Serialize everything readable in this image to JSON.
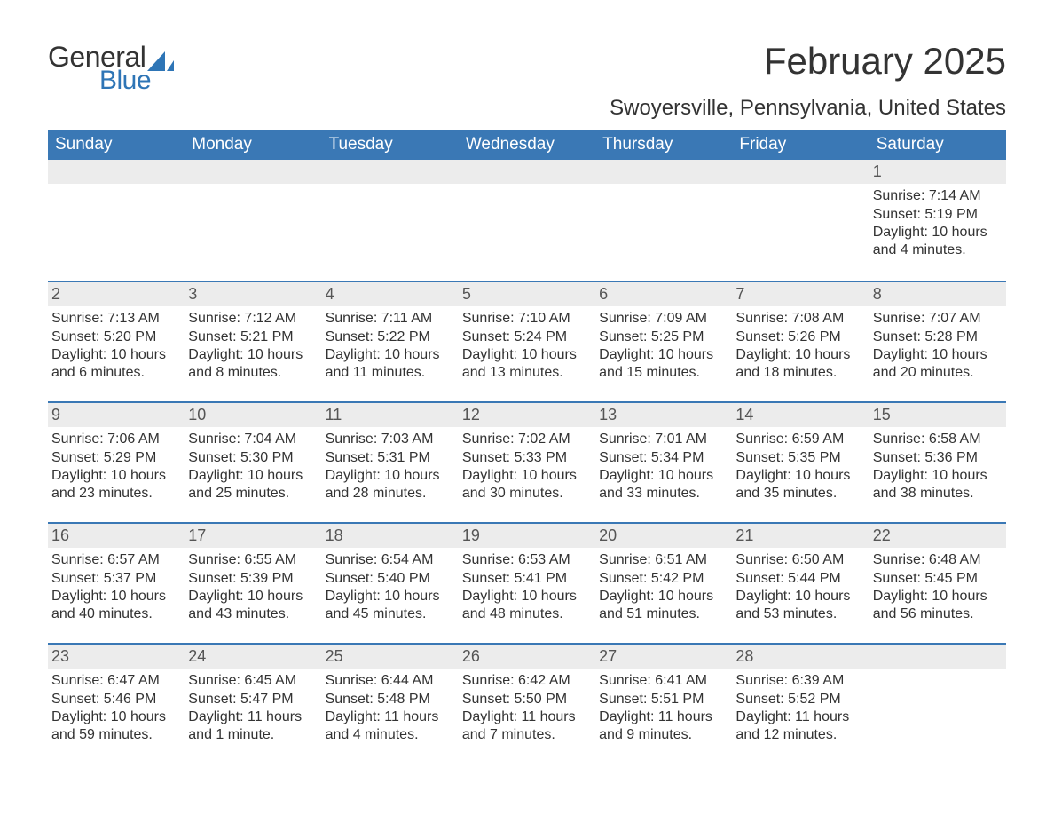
{
  "brand": {
    "word1": "General",
    "word2": "Blue",
    "text_color": "#333333",
    "accent_color": "#2e75b6"
  },
  "title": "February 2025",
  "location": "Swoyersville, Pennsylvania, United States",
  "colors": {
    "header_bg": "#3a78b5",
    "header_text": "#ffffff",
    "row_border": "#3a78b5",
    "daynum_bg": "#ececec",
    "body_text": "#333333",
    "page_bg": "#ffffff"
  },
  "typography": {
    "title_fontsize": 42,
    "location_fontsize": 24,
    "dow_fontsize": 19,
    "daynum_fontsize": 18,
    "body_fontsize": 16
  },
  "days_of_week": [
    "Sunday",
    "Monday",
    "Tuesday",
    "Wednesday",
    "Thursday",
    "Friday",
    "Saturday"
  ],
  "labels": {
    "sunrise": "Sunrise: ",
    "sunset": "Sunset: ",
    "daylight": "Daylight: "
  },
  "weeks": [
    [
      {
        "n": "",
        "sunrise": "",
        "sunset": "",
        "daylight": ""
      },
      {
        "n": "",
        "sunrise": "",
        "sunset": "",
        "daylight": ""
      },
      {
        "n": "",
        "sunrise": "",
        "sunset": "",
        "daylight": ""
      },
      {
        "n": "",
        "sunrise": "",
        "sunset": "",
        "daylight": ""
      },
      {
        "n": "",
        "sunrise": "",
        "sunset": "",
        "daylight": ""
      },
      {
        "n": "",
        "sunrise": "",
        "sunset": "",
        "daylight": ""
      },
      {
        "n": "1",
        "sunrise": "7:14 AM",
        "sunset": "5:19 PM",
        "daylight": "10 hours and 4 minutes."
      }
    ],
    [
      {
        "n": "2",
        "sunrise": "7:13 AM",
        "sunset": "5:20 PM",
        "daylight": "10 hours and 6 minutes."
      },
      {
        "n": "3",
        "sunrise": "7:12 AM",
        "sunset": "5:21 PM",
        "daylight": "10 hours and 8 minutes."
      },
      {
        "n": "4",
        "sunrise": "7:11 AM",
        "sunset": "5:22 PM",
        "daylight": "10 hours and 11 minutes."
      },
      {
        "n": "5",
        "sunrise": "7:10 AM",
        "sunset": "5:24 PM",
        "daylight": "10 hours and 13 minutes."
      },
      {
        "n": "6",
        "sunrise": "7:09 AM",
        "sunset": "5:25 PM",
        "daylight": "10 hours and 15 minutes."
      },
      {
        "n": "7",
        "sunrise": "7:08 AM",
        "sunset": "5:26 PM",
        "daylight": "10 hours and 18 minutes."
      },
      {
        "n": "8",
        "sunrise": "7:07 AM",
        "sunset": "5:28 PM",
        "daylight": "10 hours and 20 minutes."
      }
    ],
    [
      {
        "n": "9",
        "sunrise": "7:06 AM",
        "sunset": "5:29 PM",
        "daylight": "10 hours and 23 minutes."
      },
      {
        "n": "10",
        "sunrise": "7:04 AM",
        "sunset": "5:30 PM",
        "daylight": "10 hours and 25 minutes."
      },
      {
        "n": "11",
        "sunrise": "7:03 AM",
        "sunset": "5:31 PM",
        "daylight": "10 hours and 28 minutes."
      },
      {
        "n": "12",
        "sunrise": "7:02 AM",
        "sunset": "5:33 PM",
        "daylight": "10 hours and 30 minutes."
      },
      {
        "n": "13",
        "sunrise": "7:01 AM",
        "sunset": "5:34 PM",
        "daylight": "10 hours and 33 minutes."
      },
      {
        "n": "14",
        "sunrise": "6:59 AM",
        "sunset": "5:35 PM",
        "daylight": "10 hours and 35 minutes."
      },
      {
        "n": "15",
        "sunrise": "6:58 AM",
        "sunset": "5:36 PM",
        "daylight": "10 hours and 38 minutes."
      }
    ],
    [
      {
        "n": "16",
        "sunrise": "6:57 AM",
        "sunset": "5:37 PM",
        "daylight": "10 hours and 40 minutes."
      },
      {
        "n": "17",
        "sunrise": "6:55 AM",
        "sunset": "5:39 PM",
        "daylight": "10 hours and 43 minutes."
      },
      {
        "n": "18",
        "sunrise": "6:54 AM",
        "sunset": "5:40 PM",
        "daylight": "10 hours and 45 minutes."
      },
      {
        "n": "19",
        "sunrise": "6:53 AM",
        "sunset": "5:41 PM",
        "daylight": "10 hours and 48 minutes."
      },
      {
        "n": "20",
        "sunrise": "6:51 AM",
        "sunset": "5:42 PM",
        "daylight": "10 hours and 51 minutes."
      },
      {
        "n": "21",
        "sunrise": "6:50 AM",
        "sunset": "5:44 PM",
        "daylight": "10 hours and 53 minutes."
      },
      {
        "n": "22",
        "sunrise": "6:48 AM",
        "sunset": "5:45 PM",
        "daylight": "10 hours and 56 minutes."
      }
    ],
    [
      {
        "n": "23",
        "sunrise": "6:47 AM",
        "sunset": "5:46 PM",
        "daylight": "10 hours and 59 minutes."
      },
      {
        "n": "24",
        "sunrise": "6:45 AM",
        "sunset": "5:47 PM",
        "daylight": "11 hours and 1 minute."
      },
      {
        "n": "25",
        "sunrise": "6:44 AM",
        "sunset": "5:48 PM",
        "daylight": "11 hours and 4 minutes."
      },
      {
        "n": "26",
        "sunrise": "6:42 AM",
        "sunset": "5:50 PM",
        "daylight": "11 hours and 7 minutes."
      },
      {
        "n": "27",
        "sunrise": "6:41 AM",
        "sunset": "5:51 PM",
        "daylight": "11 hours and 9 minutes."
      },
      {
        "n": "28",
        "sunrise": "6:39 AM",
        "sunset": "5:52 PM",
        "daylight": "11 hours and 12 minutes."
      },
      {
        "n": "",
        "sunrise": "",
        "sunset": "",
        "daylight": ""
      }
    ]
  ]
}
